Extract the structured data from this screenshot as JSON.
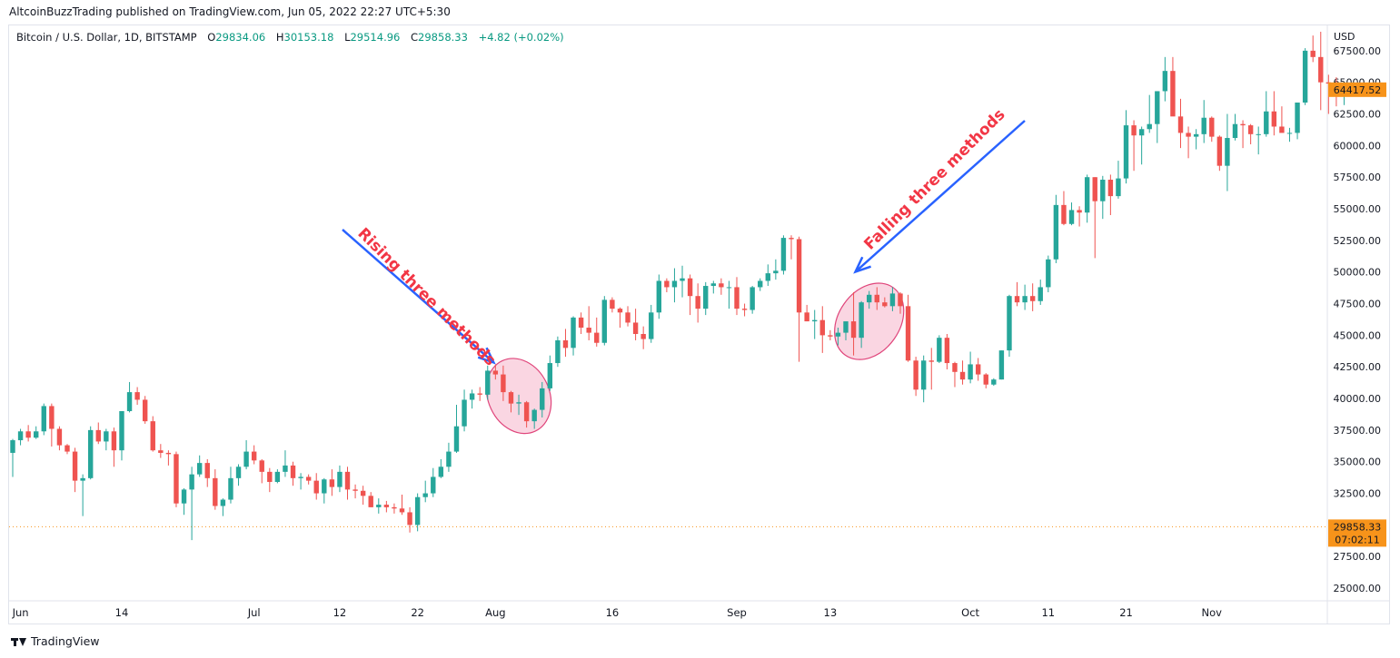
{
  "header": {
    "publisher": "AltcoinBuzzTrading published on TradingView.com, Jun 05, 2022 22:27 UTC+5:30"
  },
  "legend": {
    "symbol": "Bitcoin / U.S. Dollar, 1D, BITSTAMP",
    "o_label": "O",
    "o_value": "29834.06",
    "h_label": "H",
    "h_value": "30153.18",
    "l_label": "L",
    "l_value": "29514.96",
    "c_label": "C",
    "c_value": "29858.33",
    "change": "+4.82 (+0.02%)"
  },
  "footer": {
    "brand": "TradingView"
  },
  "colors": {
    "up": "#26a69a",
    "down": "#ef5350",
    "annotation_text": "#f23645",
    "arrow": "#2962ff",
    "badge": "#f7931a"
  },
  "chart_data": {
    "type": "candlestick",
    "currency_label": "USD",
    "ylim": [
      24000,
      69500
    ],
    "y_ticks": [
      25000,
      27500,
      30000,
      32500,
      35000,
      37500,
      40000,
      42500,
      45000,
      47500,
      50000,
      52500,
      55000,
      57500,
      60000,
      62500,
      65000,
      67500
    ],
    "y_tick_labels": [
      "25000.00",
      "27500.00",
      "",
      "32500.00",
      "35000.00",
      "37500.00",
      "40000.00",
      "42500.00",
      "45000.00",
      "47500.00",
      "50000.00",
      "52500.00",
      "55000.00",
      "57500.00",
      "60000.00",
      "62500.00",
      "65000.00",
      "67500.00"
    ],
    "x_ticks": [
      {
        "index": 1,
        "label": "Jun"
      },
      {
        "index": 14,
        "label": "14"
      },
      {
        "index": 31,
        "label": "Jul"
      },
      {
        "index": 42,
        "label": "12"
      },
      {
        "index": 52,
        "label": "22"
      },
      {
        "index": 62,
        "label": "Aug"
      },
      {
        "index": 77,
        "label": "16"
      },
      {
        "index": 93,
        "label": "Sep"
      },
      {
        "index": 105,
        "label": "13"
      },
      {
        "index": 123,
        "label": "Oct"
      },
      {
        "index": 133,
        "label": "11"
      },
      {
        "index": 143,
        "label": "21"
      },
      {
        "index": 154,
        "label": "Nov"
      }
    ],
    "last_price_badge": "64417.52",
    "current_price_badge": "29858.33",
    "countdown_badge": "07:02:11",
    "current_price": 29858.33,
    "candles": [
      [
        35700,
        36800,
        33800,
        36700
      ],
      [
        36700,
        37600,
        36300,
        37400
      ],
      [
        37400,
        37900,
        36600,
        36900
      ],
      [
        36900,
        37800,
        36800,
        37400
      ],
      [
        37400,
        39600,
        37100,
        39400
      ],
      [
        39400,
        39600,
        36200,
        37600
      ],
      [
        37600,
        37800,
        35900,
        36300
      ],
      [
        36300,
        36400,
        35600,
        35800
      ],
      [
        35800,
        36100,
        32600,
        33500
      ],
      [
        33500,
        34000,
        30700,
        33700
      ],
      [
        33700,
        37800,
        33600,
        37500
      ],
      [
        37500,
        38100,
        36400,
        36600
      ],
      [
        36600,
        37600,
        35900,
        37400
      ],
      [
        37400,
        37700,
        34600,
        35900
      ],
      [
        35900,
        39000,
        35100,
        39000
      ],
      [
        39000,
        41300,
        38900,
        40500
      ],
      [
        40500,
        40900,
        39500,
        39900
      ],
      [
        39900,
        40200,
        38000,
        38200
      ],
      [
        38200,
        38600,
        35800,
        35900
      ],
      [
        35900,
        36400,
        35300,
        35700
      ],
      [
        35700,
        35900,
        34700,
        35600
      ],
      [
        35600,
        35800,
        31400,
        31700
      ],
      [
        31700,
        32900,
        30800,
        32800
      ],
      [
        32800,
        34600,
        28800,
        34000
      ],
      [
        34000,
        35500,
        33800,
        34900
      ],
      [
        34900,
        35200,
        33000,
        33700
      ],
      [
        33700,
        34400,
        31200,
        31500
      ],
      [
        31500,
        32100,
        30700,
        32000
      ],
      [
        32000,
        34600,
        31700,
        33700
      ],
      [
        33700,
        34800,
        33100,
        34600
      ],
      [
        34600,
        36700,
        34400,
        35800
      ],
      [
        35800,
        36300,
        34800,
        35100
      ],
      [
        35100,
        35200,
        33300,
        34200
      ],
      [
        34200,
        34500,
        32600,
        33400
      ],
      [
        33400,
        34400,
        33300,
        34200
      ],
      [
        34200,
        35900,
        33800,
        34700
      ],
      [
        34700,
        35000,
        33100,
        33700
      ],
      [
        33700,
        34100,
        32800,
        33800
      ],
      [
        33800,
        34000,
        33200,
        33500
      ],
      [
        33500,
        34100,
        32000,
        32500
      ],
      [
        32500,
        33700,
        31700,
        33600
      ],
      [
        33600,
        34400,
        32300,
        33000
      ],
      [
        33000,
        34700,
        32600,
        34200
      ],
      [
        34200,
        34600,
        32000,
        32800
      ],
      [
        32800,
        33200,
        32100,
        32700
      ],
      [
        32700,
        33100,
        31600,
        32300
      ],
      [
        32300,
        32600,
        31400,
        31400
      ],
      [
        31400,
        32100,
        30900,
        31600
      ],
      [
        31600,
        31900,
        31000,
        31400
      ],
      [
        31400,
        31700,
        30900,
        31300
      ],
      [
        31300,
        32400,
        30800,
        31000
      ],
      [
        31000,
        31400,
        29400,
        30000
      ],
      [
        30000,
        32500,
        29500,
        32200
      ],
      [
        32200,
        33500,
        31800,
        32500
      ],
      [
        32500,
        34500,
        32200,
        33800
      ],
      [
        33800,
        35200,
        33700,
        34600
      ],
      [
        34600,
        36500,
        34200,
        35800
      ],
      [
        35800,
        39500,
        35700,
        37800
      ],
      [
        37800,
        40700,
        37400,
        39900
      ],
      [
        39900,
        40700,
        39200,
        40400
      ],
      [
        40400,
        40900,
        39800,
        40300
      ],
      [
        40300,
        42600,
        39900,
        42200
      ],
      [
        42200,
        42700,
        41500,
        41900
      ],
      [
        41900,
        42600,
        39800,
        40500
      ],
      [
        40500,
        40600,
        38900,
        39600
      ],
      [
        39600,
        40300,
        38700,
        39700
      ],
      [
        39700,
        39800,
        37700,
        38200
      ],
      [
        38200,
        39200,
        37600,
        39100
      ],
      [
        39100,
        41300,
        38500,
        40800
      ],
      [
        40800,
        43400,
        40600,
        42800
      ],
      [
        42800,
        44900,
        42500,
        44600
      ],
      [
        44600,
        45500,
        43300,
        44000
      ],
      [
        44000,
        46500,
        43400,
        46400
      ],
      [
        46400,
        46800,
        45100,
        45600
      ],
      [
        45600,
        47300,
        44600,
        45200
      ],
      [
        45200,
        46400,
        44100,
        44400
      ],
      [
        44400,
        48100,
        44200,
        47800
      ],
      [
        47800,
        48000,
        46800,
        47100
      ],
      [
        47100,
        47200,
        45600,
        46800
      ],
      [
        46800,
        47300,
        45700,
        46000
      ],
      [
        46000,
        47100,
        44600,
        45100
      ],
      [
        45100,
        45700,
        43900,
        44700
      ],
      [
        44700,
        47400,
        44400,
        46800
      ],
      [
        46800,
        49800,
        46300,
        49300
      ],
      [
        49300,
        49500,
        48400,
        48800
      ],
      [
        48800,
        50300,
        47600,
        49300
      ],
      [
        49300,
        50500,
        48000,
        49500
      ],
      [
        49500,
        49800,
        46600,
        48100
      ],
      [
        48100,
        49100,
        46000,
        47100
      ],
      [
        47100,
        49200,
        46600,
        48900
      ],
      [
        48900,
        49300,
        48300,
        49100
      ],
      [
        49100,
        49500,
        48200,
        48800
      ],
      [
        48800,
        49300,
        47100,
        48800
      ],
      [
        48800,
        49600,
        46600,
        47100
      ],
      [
        47100,
        47500,
        46500,
        47000
      ],
      [
        47000,
        48900,
        46700,
        48800
      ],
      [
        48800,
        49500,
        48500,
        49300
      ],
      [
        49300,
        50600,
        48900,
        49900
      ],
      [
        49900,
        51000,
        49400,
        50100
      ],
      [
        50100,
        52900,
        49800,
        52700
      ],
      [
        52700,
        52900,
        51000,
        52600
      ],
      [
        52600,
        52800,
        42900,
        46800
      ],
      [
        46800,
        47400,
        46100,
        46100
      ],
      [
        46100,
        47000,
        44700,
        46200
      ],
      [
        46200,
        47300,
        43600,
        45000
      ],
      [
        45000,
        45400,
        44600,
        44900
      ],
      [
        44900,
        45600,
        44200,
        45200
      ],
      [
        45200,
        46000,
        44600,
        46100
      ],
      [
        46100,
        48400,
        43400,
        44800
      ],
      [
        44800,
        47700,
        44000,
        47600
      ],
      [
        47600,
        48500,
        47100,
        48200
      ],
      [
        48200,
        48800,
        47000,
        47600
      ],
      [
        47600,
        48000,
        47200,
        47300
      ],
      [
        47300,
        48800,
        46900,
        48300
      ],
      [
        48300,
        48400,
        46700,
        47300
      ],
      [
        47300,
        48200,
        42900,
        43000
      ],
      [
        43000,
        43300,
        40200,
        40700
      ],
      [
        40700,
        43400,
        39700,
        43000
      ],
      [
        43000,
        44000,
        40700,
        42900
      ],
      [
        42900,
        45000,
        42800,
        44800
      ],
      [
        44800,
        45100,
        42300,
        42800
      ],
      [
        42800,
        42900,
        40900,
        42100
      ],
      [
        42100,
        43000,
        41100,
        41500
      ],
      [
        41500,
        43700,
        41200,
        42700
      ],
      [
        42700,
        43200,
        41400,
        41900
      ],
      [
        41900,
        42000,
        40800,
        41100
      ],
      [
        41100,
        41600,
        41000,
        41500
      ],
      [
        41500,
        43800,
        41500,
        43800
      ],
      [
        43800,
        48200,
        43300,
        48100
      ],
      [
        48100,
        49200,
        47300,
        47600
      ],
      [
        47600,
        49000,
        47000,
        48100
      ],
      [
        48100,
        49100,
        46900,
        47700
      ],
      [
        47700,
        49400,
        47400,
        48800
      ],
      [
        48800,
        51300,
        48400,
        51000
      ],
      [
        51000,
        56100,
        50700,
        55300
      ],
      [
        55300,
        56400,
        53700,
        53800
      ],
      [
        53800,
        55500,
        53700,
        54900
      ],
      [
        54900,
        55200,
        53600,
        54700
      ],
      [
        54700,
        57700,
        53900,
        57500
      ],
      [
        57500,
        57500,
        51100,
        55600
      ],
      [
        55600,
        57600,
        54200,
        57300
      ],
      [
        57300,
        57700,
        54500,
        56000
      ],
      [
        56000,
        58800,
        55800,
        57400
      ],
      [
        57400,
        62800,
        57000,
        61600
      ],
      [
        61600,
        62000,
        58000,
        60800
      ],
      [
        60800,
        61500,
        58500,
        61300
      ],
      [
        61300,
        64000,
        61000,
        61700
      ],
      [
        61700,
        64300,
        60200,
        64300
      ],
      [
        64300,
        67000,
        63500,
        65900
      ],
      [
        65900,
        67000,
        62600,
        62300
      ],
      [
        62300,
        63700,
        59800,
        61000
      ],
      [
        61000,
        61500,
        59000,
        60700
      ],
      [
        60700,
        61300,
        59700,
        60900
      ],
      [
        60900,
        63600,
        60200,
        62200
      ],
      [
        62200,
        62300,
        60300,
        60700
      ],
      [
        60700,
        60800,
        58000,
        58400
      ],
      [
        58400,
        62500,
        56400,
        60600
      ],
      [
        60600,
        62500,
        60400,
        61700
      ],
      [
        61700,
        62000,
        59800,
        61600
      ],
      [
        61600,
        61700,
        60100,
        60900
      ],
      [
        60900,
        61500,
        59300,
        60900
      ],
      [
        60900,
        64300,
        60700,
        62700
      ],
      [
        62700,
        64300,
        60800,
        61500
      ],
      [
        61500,
        63100,
        61100,
        61000
      ],
      [
        61000,
        61400,
        60300,
        61000
      ],
      [
        61000,
        63400,
        60500,
        63400
      ],
      [
        63400,
        67700,
        63200,
        67500
      ],
      [
        67500,
        68700,
        66600,
        67000
      ],
      [
        67000,
        69000,
        62800,
        65000
      ],
      [
        65000,
        65600,
        62500,
        64900
      ],
      [
        64900,
        65400,
        63100,
        64400
      ],
      [
        64400,
        65000,
        63200,
        64417.52
      ]
    ],
    "annotations": [
      {
        "label": "Rising three methods"
      },
      {
        "label": "Falling three methods"
      }
    ]
  }
}
